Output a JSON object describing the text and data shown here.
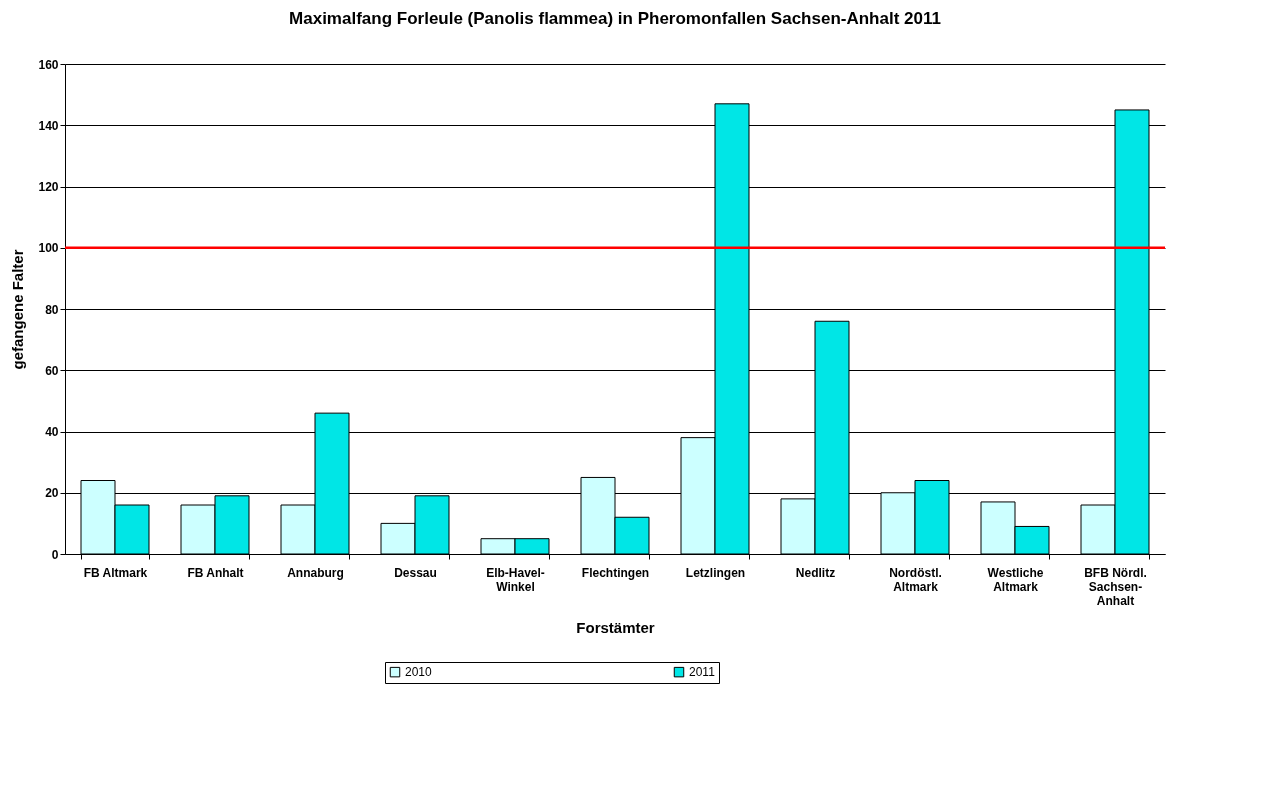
{
  "chart_data": {
    "type": "bar",
    "title": "Maximalfang Forleule (Panolis flammea) in Pheromonfallen Sachsen-Anhalt 2011",
    "xlabel": "Forstämter",
    "ylabel": "gefangene Falter",
    "categories": [
      "FB Altmark",
      "FB Anhalt",
      "Annaburg",
      "Dessau",
      "Elb-Havel-\nWinkel",
      "Flechtingen",
      "Letzlingen",
      "Nedlitz",
      "Nordöstl.\nAltmark",
      "Westliche\nAltmark",
      "BFB Nördl.\nSachsen-\nAnhalt"
    ],
    "series": [
      {
        "name": "2010",
        "color": "#ccffff",
        "values": [
          24,
          16,
          16,
          10,
          5,
          25,
          38,
          18,
          20,
          17,
          16
        ]
      },
      {
        "name": "2011",
        "color": "#00e6e6",
        "values": [
          16,
          19,
          46,
          19,
          5,
          12,
          147,
          76,
          24,
          9,
          145
        ]
      }
    ],
    "ylim": [
      0,
      160
    ],
    "yticks": [
      0,
      20,
      40,
      60,
      80,
      100,
      120,
      140,
      160
    ],
    "grid": "y",
    "legend": "bottom",
    "ref_lines": [
      {
        "axis": "y",
        "value": 100,
        "color": "#ff0000"
      }
    ]
  }
}
